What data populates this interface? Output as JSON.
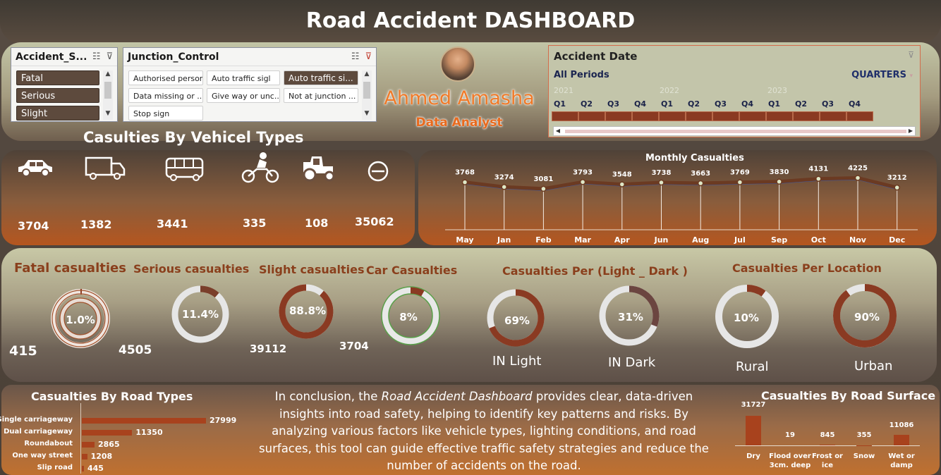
{
  "dashboard_title": "Road Accident DASHBOARD",
  "slicers": {
    "severity": {
      "title": "Accident_S...",
      "items": [
        "Fatal",
        "Serious",
        "Slight"
      ]
    },
    "junction": {
      "title": "Junction_Control",
      "items": [
        "Authorised person",
        "Auto traffic sigl",
        "Auto traffic si...",
        "Data missing or ...",
        "Give way or unc...",
        "Not at junction ...",
        "Stop sign"
      ]
    }
  },
  "author": {
    "name": "Ahmed Amasha",
    "role": "Data Analyst"
  },
  "timeline": {
    "title": "Accident Date",
    "periods_label": "All Periods",
    "level_label": "QUARTERS",
    "years": [
      "2021",
      "2022",
      "2023"
    ],
    "quarters": [
      "Q1",
      "Q2",
      "Q3",
      "Q4",
      "Q1",
      "Q2",
      "Q3",
      "Q4",
      "Q1",
      "Q2",
      "Q3",
      "Q4"
    ]
  },
  "vehicle_section": {
    "title": "Casulties By Vehicel Types",
    "items": [
      {
        "icon": "car-icon",
        "value": "3704"
      },
      {
        "icon": "truck-icon",
        "value": "1382"
      },
      {
        "icon": "bus-icon",
        "value": "3441"
      },
      {
        "icon": "motorcycle-icon",
        "value": "335"
      },
      {
        "icon": "tractor-icon",
        "value": "108"
      },
      {
        "icon": "other-vehicle-icon",
        "value": "35062"
      }
    ]
  },
  "kpis": {
    "fatal": {
      "title": "Fatal casualties",
      "pct": "1.0%",
      "left_num": "415",
      "right_num": "4505"
    },
    "serious": {
      "title": "Serious casualties",
      "pct": "11.4%"
    },
    "slight": {
      "title": "Slight casualties",
      "pct": "88.8%",
      "left_num": "39112",
      "right_num": "3704"
    },
    "car": {
      "title": "Car Casualties",
      "pct": "8%"
    },
    "light_dark": {
      "title": "Casualties Per (Light _ Dark )",
      "light_pct": "69%",
      "light_label": "IN Light",
      "dark_pct": "31%",
      "dark_label": "IN Dark"
    },
    "location": {
      "title": "Casualties Per Location",
      "rural_pct": "10%",
      "rural_label": "Rural",
      "urban_pct": "90%",
      "urban_label": "Urban"
    }
  },
  "conclusion": {
    "before": "In conclusion, the ",
    "emph": "Road Accident Dashboard",
    "after": " provides clear, data-driven insights into road safety, helping to identify key patterns and risks. By analyzing various factors like vehicle types, lighting conditions, and road surfaces, this tool can guide effective traffic safety strategies and reduce the number of accidents on the road."
  },
  "colors": {
    "accent": "#a8421d",
    "title_orange": "#8a3f1c",
    "name_orange": "#f07a28",
    "line_dark": "#6b3a22",
    "line_blue": "#3b5aa8"
  },
  "chart_data": [
    {
      "type": "line",
      "title": "Monthly Casualties",
      "categories": [
        "May",
        "Jan",
        "Feb",
        "Mar",
        "Apr",
        "Jun",
        "Aug",
        "Jul",
        "Sep",
        "Oct",
        "Nov",
        "Dec"
      ],
      "values": [
        3768,
        3274,
        3081,
        3793,
        3548,
        3738,
        3663,
        3769,
        3830,
        4131,
        4225,
        3212
      ],
      "ylim": [
        0,
        4500
      ]
    },
    {
      "type": "bar",
      "orientation": "horizontal",
      "title": "Casualties By Road Types",
      "categories": [
        "Single carriageway",
        "Dual carriageway",
        "Roundabout",
        "One way street",
        "Slip road"
      ],
      "values": [
        27999,
        11350,
        2865,
        1208,
        445
      ]
    },
    {
      "type": "bar",
      "title": "Casualties By Road Surface",
      "categories": [
        "Dry",
        "Flood over 3cm. deep",
        "Frost or ice",
        "Snow",
        "Wet or damp"
      ],
      "values": [
        31727,
        19,
        845,
        355,
        11086
      ]
    }
  ]
}
